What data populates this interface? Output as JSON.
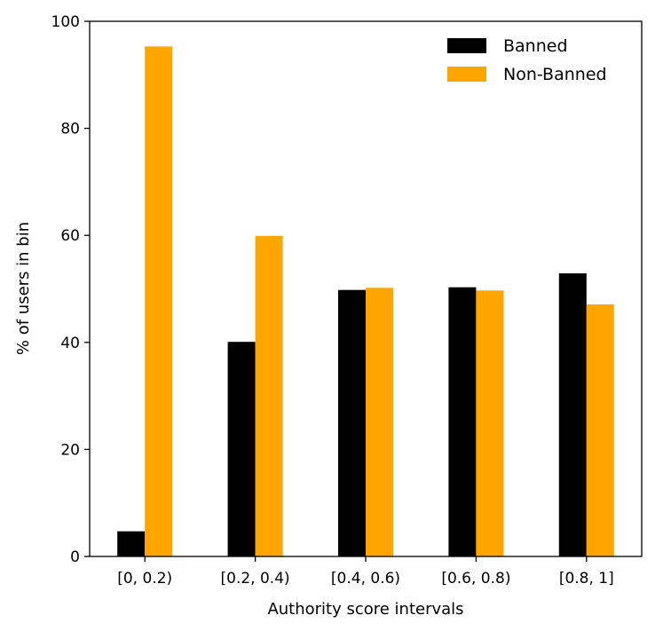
{
  "chart_data": {
    "type": "bar",
    "title": "",
    "xlabel": "Authority score intervals",
    "ylabel": "% of users in bin",
    "categories": [
      "[0, 0.2)",
      "[0.2, 0.4)",
      "[0.4, 0.6)",
      "[0.6, 0.8)",
      "[0.8, 1]"
    ],
    "ylim": [
      0,
      100
    ],
    "yticks": [
      0,
      20,
      40,
      60,
      80,
      100
    ],
    "grid": false,
    "legend_position": "top-right",
    "series": [
      {
        "name": "Banned",
        "color": "#000000",
        "values": [
          4.7,
          40.1,
          49.8,
          50.3,
          52.9
        ]
      },
      {
        "name": "Non-Banned",
        "color": "#ffa500",
        "values": [
          95.3,
          59.9,
          50.2,
          49.7,
          47.1
        ]
      }
    ]
  }
}
